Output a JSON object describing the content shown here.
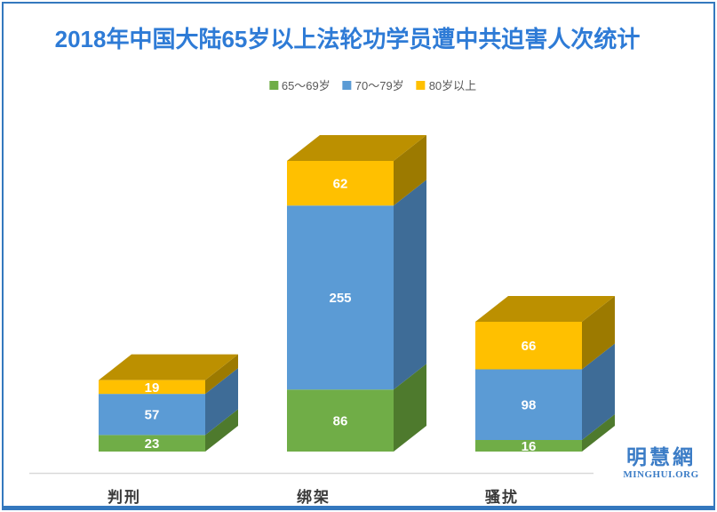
{
  "page": {
    "border_color": "#3478BE",
    "background": "#FFFFFF",
    "watermark": {
      "cn": "明慧網",
      "en": "MINGHUI.ORG",
      "color": "#3B7CC6"
    }
  },
  "chart_data": {
    "type": "bar",
    "variant": "3d-stacked-column",
    "title": "2018年中国大陆65岁以上法轮功学员遭中共迫害人次统计",
    "title_color": "#2E7BD6",
    "categories": [
      "判刑",
      "绑架",
      "骚扰"
    ],
    "series": [
      {
        "name": "65～69岁",
        "color": "#70AD47",
        "side_color": "#4E7A2D",
        "values": [
          23,
          86,
          16
        ]
      },
      {
        "name": "70～79岁",
        "color": "#5B9BD5",
        "side_color": "#3E6C97",
        "values": [
          57,
          255,
          98
        ]
      },
      {
        "name": "80岁以上",
        "color": "#FFC000",
        "side_color": "#9C7A00",
        "values": [
          19,
          62,
          66
        ]
      }
    ],
    "top_face_color": "#BC9000",
    "value_label_color": "#FFFFFF",
    "legend_position": "top",
    "legend_text_color": "#595959",
    "grid": false,
    "baseline_axis_color": "#D9D9D9",
    "ylabel": "",
    "xlabel": ""
  }
}
